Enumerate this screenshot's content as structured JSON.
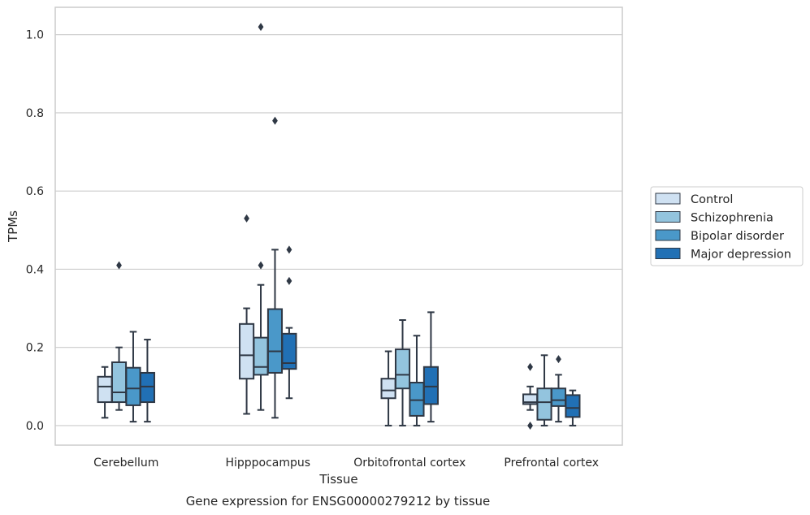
{
  "chart_data": {
    "type": "box",
    "xlabel": "Tissue",
    "ylabel": "TPMs",
    "caption": "Gene expression for ENSG00000279212 by tissue",
    "ylim": [
      -0.05,
      1.07
    ],
    "yticks": [
      0.0,
      0.2,
      0.4,
      0.6,
      0.8,
      1.0
    ],
    "ytick_labels": [
      "0.0",
      "0.2",
      "0.4",
      "0.6",
      "0.8",
      "1.0"
    ],
    "grid": "horizontal",
    "legend_position": "right",
    "categories": [
      "Cerebellum",
      "Hipppocampus",
      "Orbitofrontal cortex",
      "Prefrontal cortex"
    ],
    "series": [
      {
        "name": "Control",
        "color": "#cfe1f2",
        "boxes": [
          {
            "whisker_low": 0.02,
            "q1": 0.06,
            "median": 0.1,
            "q3": 0.125,
            "whisker_high": 0.15,
            "outliers": []
          },
          {
            "whisker_low": 0.03,
            "q1": 0.12,
            "median": 0.18,
            "q3": 0.26,
            "whisker_high": 0.3,
            "outliers": [
              0.53
            ]
          },
          {
            "whisker_low": 0.0,
            "q1": 0.07,
            "median": 0.09,
            "q3": 0.12,
            "whisker_high": 0.19,
            "outliers": []
          },
          {
            "whisker_low": 0.04,
            "q1": 0.055,
            "median": 0.06,
            "q3": 0.08,
            "whisker_high": 0.1,
            "outliers": [
              0.15,
              0.0
            ]
          }
        ]
      },
      {
        "name": "Schizophrenia",
        "color": "#93c4de",
        "boxes": [
          {
            "whisker_low": 0.04,
            "q1": 0.06,
            "median": 0.085,
            "q3": 0.162,
            "whisker_high": 0.2,
            "outliers": [
              0.41
            ]
          },
          {
            "whisker_low": 0.04,
            "q1": 0.13,
            "median": 0.15,
            "q3": 0.225,
            "whisker_high": 0.36,
            "outliers": [
              0.41,
              1.02
            ]
          },
          {
            "whisker_low": 0.0,
            "q1": 0.095,
            "median": 0.13,
            "q3": 0.195,
            "whisker_high": 0.27,
            "outliers": []
          },
          {
            "whisker_low": 0.0,
            "q1": 0.015,
            "median": 0.06,
            "q3": 0.095,
            "whisker_high": 0.18,
            "outliers": []
          }
        ]
      },
      {
        "name": "Bipolar disorder",
        "color": "#4a98c9",
        "boxes": [
          {
            "whisker_low": 0.01,
            "q1": 0.052,
            "median": 0.095,
            "q3": 0.148,
            "whisker_high": 0.24,
            "outliers": []
          },
          {
            "whisker_low": 0.02,
            "q1": 0.135,
            "median": 0.19,
            "q3": 0.298,
            "whisker_high": 0.45,
            "outliers": [
              0.78
            ]
          },
          {
            "whisker_low": 0.0,
            "q1": 0.025,
            "median": 0.065,
            "q3": 0.11,
            "whisker_high": 0.23,
            "outliers": []
          },
          {
            "whisker_low": 0.01,
            "q1": 0.05,
            "median": 0.065,
            "q3": 0.095,
            "whisker_high": 0.13,
            "outliers": [
              0.17
            ]
          }
        ]
      },
      {
        "name": "Major depression",
        "color": "#2170b5",
        "boxes": [
          {
            "whisker_low": 0.01,
            "q1": 0.06,
            "median": 0.1,
            "q3": 0.135,
            "whisker_high": 0.22,
            "outliers": []
          },
          {
            "whisker_low": 0.07,
            "q1": 0.145,
            "median": 0.16,
            "q3": 0.235,
            "whisker_high": 0.25,
            "outliers": [
              0.37,
              0.45
            ]
          },
          {
            "whisker_low": 0.01,
            "q1": 0.055,
            "median": 0.1,
            "q3": 0.15,
            "whisker_high": 0.29,
            "outliers": []
          },
          {
            "whisker_low": 0.0,
            "q1": 0.022,
            "median": 0.045,
            "q3": 0.078,
            "whisker_high": 0.09,
            "outliers": []
          }
        ]
      }
    ]
  }
}
